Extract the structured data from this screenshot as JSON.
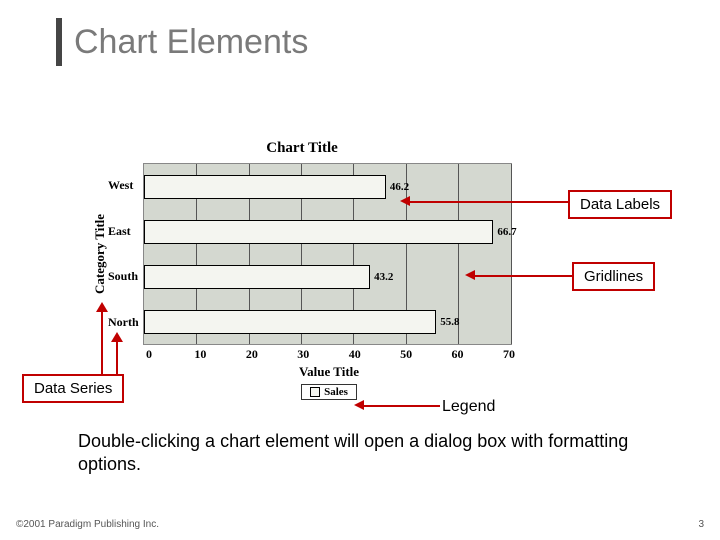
{
  "title": "Chart Elements",
  "chart": {
    "type": "bar-horizontal",
    "chart_title": "Chart Title",
    "y_axis_title": "Category Title",
    "x_axis_title": "Value Title",
    "xlim": [
      0,
      70
    ],
    "x_ticks": [
      "0",
      "10",
      "20",
      "30",
      "40",
      "50",
      "60",
      "70"
    ],
    "categories": [
      "West",
      "East",
      "South",
      "North"
    ],
    "values": [
      46.2,
      66.7,
      43.2,
      55.8
    ],
    "value_labels": [
      "46.2",
      "66.7",
      "43.2",
      "55.8"
    ],
    "bar_color": "#f4f5f0",
    "bar_border": "#000000",
    "plot_bg": "#d4d8d0",
    "grid_color": "#555555",
    "legend_label": "Sales"
  },
  "callouts": {
    "data_labels": "Data Labels",
    "gridlines": "Gridlines",
    "data_series": "Data Series",
    "legend": "Legend"
  },
  "body_text": "Double-clicking a chart element will open a dialog box with formatting options.",
  "footer": {
    "copyright": "©2001 Paradigm Publishing Inc.",
    "page": "3"
  },
  "colors": {
    "callout_border": "#c00000",
    "title_color": "#7a7a7a"
  }
}
